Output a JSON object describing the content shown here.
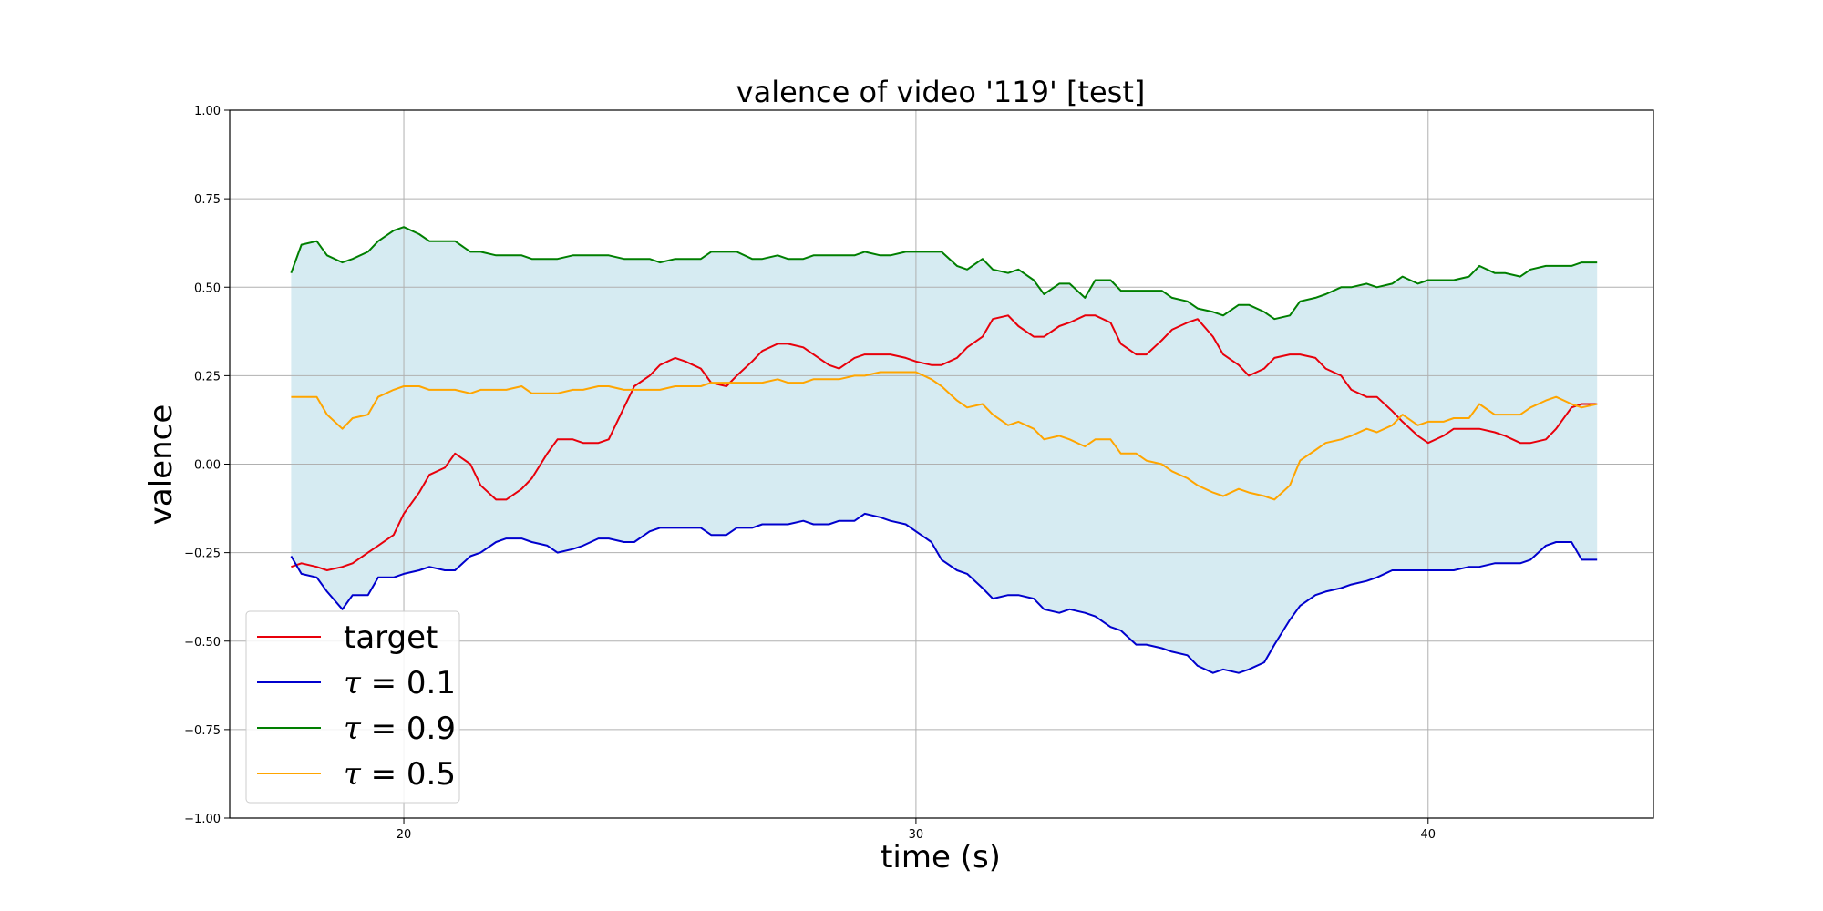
{
  "chart_data": {
    "type": "line",
    "title": "valence of video '119' [test]",
    "xlabel": "time (s)",
    "ylabel": "valence",
    "xlim": [
      16.6,
      44.4
    ],
    "ylim": [
      -1.0,
      1.0
    ],
    "xticks": [
      20,
      30,
      40
    ],
    "xtick_labels": [
      "20",
      "30",
      "40"
    ],
    "yticks": [
      -1.0,
      -0.75,
      -0.5,
      -0.25,
      0.0,
      0.25,
      0.5,
      0.75,
      1.0
    ],
    "ytick_labels": [
      "−1.00",
      "−0.75",
      "−0.50",
      "−0.25",
      "0.00",
      "0.25",
      "0.50",
      "0.75",
      "1.00"
    ],
    "grid": true,
    "legend_position": "bottom-left",
    "fill_between": {
      "lower": "τ = 0.1",
      "upper": "τ = 0.9",
      "color": "#add8e6"
    },
    "x": [
      17.8,
      18.0,
      18.3,
      18.5,
      18.8,
      19.0,
      19.3,
      19.5,
      19.8,
      20.0,
      20.3,
      20.5,
      20.8,
      21.0,
      21.3,
      21.5,
      21.8,
      22.0,
      22.3,
      22.5,
      22.8,
      23.0,
      23.3,
      23.5,
      23.8,
      24.0,
      24.3,
      24.5,
      24.8,
      25.0,
      25.3,
      25.5,
      25.8,
      26.0,
      26.3,
      26.5,
      26.8,
      27.0,
      27.3,
      27.5,
      27.8,
      28.0,
      28.3,
      28.5,
      28.8,
      29.0,
      29.3,
      29.5,
      29.8,
      30.0,
      30.3,
      30.5,
      30.8,
      31.0,
      31.3,
      31.5,
      31.8,
      32.0,
      32.3,
      32.5,
      32.8,
      33.0,
      33.3,
      33.5,
      33.8,
      34.0,
      34.3,
      34.5,
      34.8,
      35.0,
      35.3,
      35.5,
      35.8,
      36.0,
      36.3,
      36.5,
      36.8,
      37.0,
      37.3,
      37.5,
      37.8,
      38.0,
      38.3,
      38.5,
      38.8,
      39.0,
      39.3,
      39.5,
      39.8,
      40.0,
      40.3,
      40.5,
      40.8,
      41.0,
      41.3,
      41.5,
      41.8,
      42.0,
      42.3,
      42.5,
      42.8,
      43.0,
      43.3
    ],
    "series": [
      {
        "name": "target",
        "color": "#e8000b",
        "values": [
          -0.29,
          -0.28,
          -0.29,
          -0.3,
          -0.29,
          -0.28,
          -0.25,
          -0.23,
          -0.2,
          -0.14,
          -0.08,
          -0.03,
          -0.01,
          0.03,
          0.0,
          -0.06,
          -0.1,
          -0.1,
          -0.07,
          -0.04,
          0.03,
          0.07,
          0.07,
          0.06,
          0.06,
          0.07,
          0.16,
          0.22,
          0.25,
          0.28,
          0.3,
          0.29,
          0.27,
          0.23,
          0.22,
          0.25,
          0.29,
          0.32,
          0.34,
          0.34,
          0.33,
          0.31,
          0.28,
          0.27,
          0.3,
          0.31,
          0.31,
          0.31,
          0.3,
          0.29,
          0.28,
          0.28,
          0.3,
          0.33,
          0.36,
          0.41,
          0.42,
          0.39,
          0.36,
          0.36,
          0.39,
          0.4,
          0.42,
          0.42,
          0.4,
          0.34,
          0.31,
          0.31,
          0.35,
          0.38,
          0.4,
          0.41,
          0.36,
          0.31,
          0.28,
          0.25,
          0.27,
          0.3,
          0.31,
          0.31,
          0.3,
          0.27,
          0.25,
          0.21,
          0.19,
          0.19,
          0.15,
          0.12,
          0.08,
          0.06,
          0.08,
          0.1,
          0.1,
          0.1,
          0.09,
          0.08,
          0.06,
          0.06,
          0.07,
          0.1,
          0.16,
          0.17,
          0.17
        ]
      },
      {
        "name": "τ = 0.1",
        "color": "#0000cd",
        "values": [
          -0.26,
          -0.31,
          -0.32,
          -0.36,
          -0.41,
          -0.37,
          -0.37,
          -0.32,
          -0.32,
          -0.31,
          -0.3,
          -0.29,
          -0.3,
          -0.3,
          -0.26,
          -0.25,
          -0.22,
          -0.21,
          -0.21,
          -0.22,
          -0.23,
          -0.25,
          -0.24,
          -0.23,
          -0.21,
          -0.21,
          -0.22,
          -0.22,
          -0.19,
          -0.18,
          -0.18,
          -0.18,
          -0.18,
          -0.2,
          -0.2,
          -0.18,
          -0.18,
          -0.17,
          -0.17,
          -0.17,
          -0.16,
          -0.17,
          -0.17,
          -0.16,
          -0.16,
          -0.14,
          -0.15,
          -0.16,
          -0.17,
          -0.19,
          -0.22,
          -0.27,
          -0.3,
          -0.31,
          -0.35,
          -0.38,
          -0.37,
          -0.37,
          -0.38,
          -0.41,
          -0.42,
          -0.41,
          -0.42,
          -0.43,
          -0.46,
          -0.47,
          -0.51,
          -0.51,
          -0.52,
          -0.53,
          -0.54,
          -0.57,
          -0.59,
          -0.58,
          -0.59,
          -0.58,
          -0.56,
          -0.51,
          -0.44,
          -0.4,
          -0.37,
          -0.36,
          -0.35,
          -0.34,
          -0.33,
          -0.32,
          -0.3,
          -0.3,
          -0.3,
          -0.3,
          -0.3,
          -0.3,
          -0.29,
          -0.29,
          -0.28,
          -0.28,
          -0.28,
          -0.27,
          -0.23,
          -0.22,
          -0.22,
          -0.27,
          -0.27
        ]
      },
      {
        "name": "τ = 0.9",
        "color": "#007f00",
        "values": [
          0.54,
          0.62,
          0.63,
          0.59,
          0.57,
          0.58,
          0.6,
          0.63,
          0.66,
          0.67,
          0.65,
          0.63,
          0.63,
          0.63,
          0.6,
          0.6,
          0.59,
          0.59,
          0.59,
          0.58,
          0.58,
          0.58,
          0.59,
          0.59,
          0.59,
          0.59,
          0.58,
          0.58,
          0.58,
          0.57,
          0.58,
          0.58,
          0.58,
          0.6,
          0.6,
          0.6,
          0.58,
          0.58,
          0.59,
          0.58,
          0.58,
          0.59,
          0.59,
          0.59,
          0.59,
          0.6,
          0.59,
          0.59,
          0.6,
          0.6,
          0.6,
          0.6,
          0.56,
          0.55,
          0.58,
          0.55,
          0.54,
          0.55,
          0.52,
          0.48,
          0.51,
          0.51,
          0.47,
          0.52,
          0.52,
          0.49,
          0.49,
          0.49,
          0.49,
          0.47,
          0.46,
          0.44,
          0.43,
          0.42,
          0.45,
          0.45,
          0.43,
          0.41,
          0.42,
          0.46,
          0.47,
          0.48,
          0.5,
          0.5,
          0.51,
          0.5,
          0.51,
          0.53,
          0.51,
          0.52,
          0.52,
          0.52,
          0.53,
          0.56,
          0.54,
          0.54,
          0.53,
          0.55,
          0.56,
          0.56,
          0.56,
          0.57,
          0.57
        ]
      },
      {
        "name": "τ = 0.5",
        "color": "#ffa500",
        "values": [
          0.19,
          0.19,
          0.19,
          0.14,
          0.1,
          0.13,
          0.14,
          0.19,
          0.21,
          0.22,
          0.22,
          0.21,
          0.21,
          0.21,
          0.2,
          0.21,
          0.21,
          0.21,
          0.22,
          0.2,
          0.2,
          0.2,
          0.21,
          0.21,
          0.22,
          0.22,
          0.21,
          0.21,
          0.21,
          0.21,
          0.22,
          0.22,
          0.22,
          0.23,
          0.23,
          0.23,
          0.23,
          0.23,
          0.24,
          0.23,
          0.23,
          0.24,
          0.24,
          0.24,
          0.25,
          0.25,
          0.26,
          0.26,
          0.26,
          0.26,
          0.24,
          0.22,
          0.18,
          0.16,
          0.17,
          0.14,
          0.11,
          0.12,
          0.1,
          0.07,
          0.08,
          0.07,
          0.05,
          0.07,
          0.07,
          0.03,
          0.03,
          0.01,
          0.0,
          -0.02,
          -0.04,
          -0.06,
          -0.08,
          -0.09,
          -0.07,
          -0.08,
          -0.09,
          -0.1,
          -0.06,
          0.01,
          0.04,
          0.06,
          0.07,
          0.08,
          0.1,
          0.09,
          0.11,
          0.14,
          0.11,
          0.12,
          0.12,
          0.13,
          0.13,
          0.17,
          0.14,
          0.14,
          0.14,
          0.16,
          0.18,
          0.19,
          0.17,
          0.16,
          0.17
        ]
      }
    ],
    "legend_entries": [
      {
        "label": "target",
        "color": "#e8000b",
        "math": false
      },
      {
        "label_prefix": "τ",
        "label_suffix": " = 0.1",
        "color": "#0000cd",
        "math": true
      },
      {
        "label_prefix": "τ",
        "label_suffix": " = 0.9",
        "color": "#007f00",
        "math": true
      },
      {
        "label_prefix": "τ",
        "label_suffix": " = 0.5",
        "color": "#ffa500",
        "math": true
      }
    ]
  }
}
